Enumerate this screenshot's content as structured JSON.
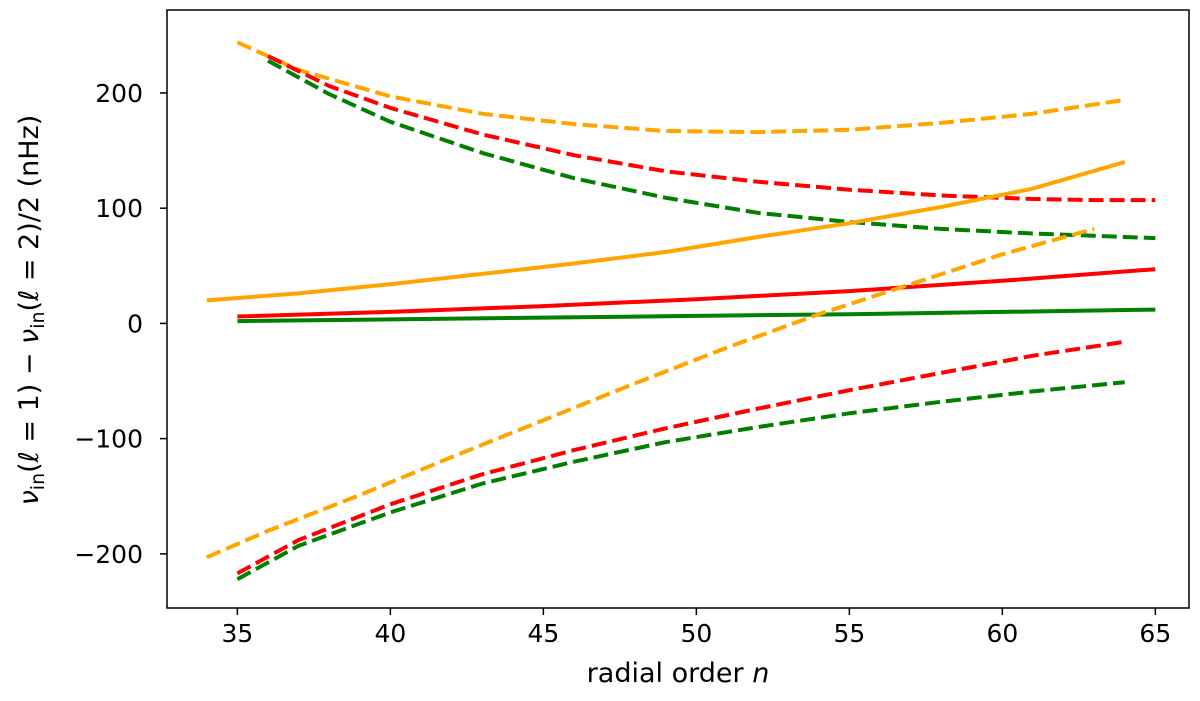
{
  "chart_data": {
    "type": "line",
    "title": "",
    "xlabel_text": "radial order",
    "xlabel_var": "n",
    "ylabel_parts": [
      {
        "t": "ν",
        "style": "italic"
      },
      {
        "t": "in",
        "style": "sub"
      },
      {
        "t": "(",
        "style": "normal"
      },
      {
        "t": "ℓ",
        "style": "italic"
      },
      {
        "t": " = 1) − ",
        "style": "normal"
      },
      {
        "t": "ν",
        "style": "italic"
      },
      {
        "t": "in",
        "style": "sub"
      },
      {
        "t": "(",
        "style": "normal"
      },
      {
        "t": "ℓ",
        "style": "italic"
      },
      {
        "t": " = 2)/2 (nHz)",
        "style": "normal"
      }
    ],
    "xlim": [
      32.7,
      66.1
    ],
    "ylim": [
      -247,
      272
    ],
    "xticks": [
      35,
      40,
      45,
      50,
      55,
      60,
      65
    ],
    "xtick_labels": [
      "35",
      "40",
      "45",
      "50",
      "55",
      "60",
      "65"
    ],
    "yticks": [
      -200,
      -100,
      0,
      100,
      200
    ],
    "ytick_labels": [
      "−200",
      "−100",
      "0",
      "100",
      "200"
    ],
    "grid": false,
    "colors": {
      "orange": "#ffa500",
      "red": "#ff0000",
      "green": "#007f00"
    },
    "series": [
      {
        "color": "orange",
        "dash": "dashed",
        "x": [
          35,
          37,
          40,
          43,
          46,
          49,
          52,
          55,
          58,
          61,
          64
        ],
        "y": [
          244,
          220,
          197,
          182,
          173,
          167,
          166,
          168,
          174,
          182,
          194
        ]
      },
      {
        "color": "red",
        "dash": "dashed",
        "x": [
          36,
          38,
          40,
          43,
          46,
          49,
          52,
          55,
          58,
          61,
          63,
          65
        ],
        "y": [
          232,
          206,
          187,
          164,
          146,
          132,
          123,
          116,
          111,
          108,
          107,
          107
        ]
      },
      {
        "color": "green",
        "dash": "dashed",
        "x": [
          36,
          38,
          40,
          43,
          46,
          49,
          52,
          55,
          58,
          61,
          63,
          65
        ],
        "y": [
          228,
          199,
          175,
          148,
          126,
          109,
          96,
          88,
          82,
          78,
          76,
          74
        ]
      },
      {
        "color": "orange",
        "dash": "solid",
        "x": [
          34,
          37,
          40,
          43,
          46,
          49,
          52,
          55,
          58,
          61,
          64
        ],
        "y": [
          20,
          26,
          34,
          43,
          52,
          62,
          75,
          87,
          101,
          117,
          140
        ]
      },
      {
        "color": "red",
        "dash": "solid",
        "x": [
          35,
          40,
          45,
          50,
          55,
          60,
          65
        ],
        "y": [
          6,
          10,
          15,
          21,
          28,
          37,
          47
        ]
      },
      {
        "color": "green",
        "dash": "solid",
        "x": [
          35,
          40,
          45,
          50,
          55,
          60,
          65
        ],
        "y": [
          2,
          3.5,
          5,
          6.5,
          8,
          10,
          12
        ]
      },
      {
        "color": "orange",
        "dash": "dashed",
        "x": [
          34,
          36,
          39,
          42,
          45,
          48,
          51,
          54,
          57,
          60,
          63
        ],
        "y": [
          -203,
          -180,
          -149,
          -116,
          -84,
          -52,
          -21,
          8,
          34,
          60,
          82
        ]
      },
      {
        "color": "red",
        "dash": "dashed",
        "x": [
          35,
          37,
          40,
          43,
          46,
          49,
          52,
          55,
          58,
          61,
          64
        ],
        "y": [
          -217,
          -188,
          -157,
          -131,
          -110,
          -91,
          -74,
          -58,
          -43,
          -28,
          -16
        ]
      },
      {
        "color": "green",
        "dash": "dashed",
        "x": [
          35,
          37,
          40,
          43,
          46,
          49,
          52,
          55,
          58,
          61,
          64
        ],
        "y": [
          -222,
          -193,
          -164,
          -139,
          -120,
          -103,
          -90,
          -78,
          -68,
          -59,
          -51
        ]
      }
    ]
  }
}
